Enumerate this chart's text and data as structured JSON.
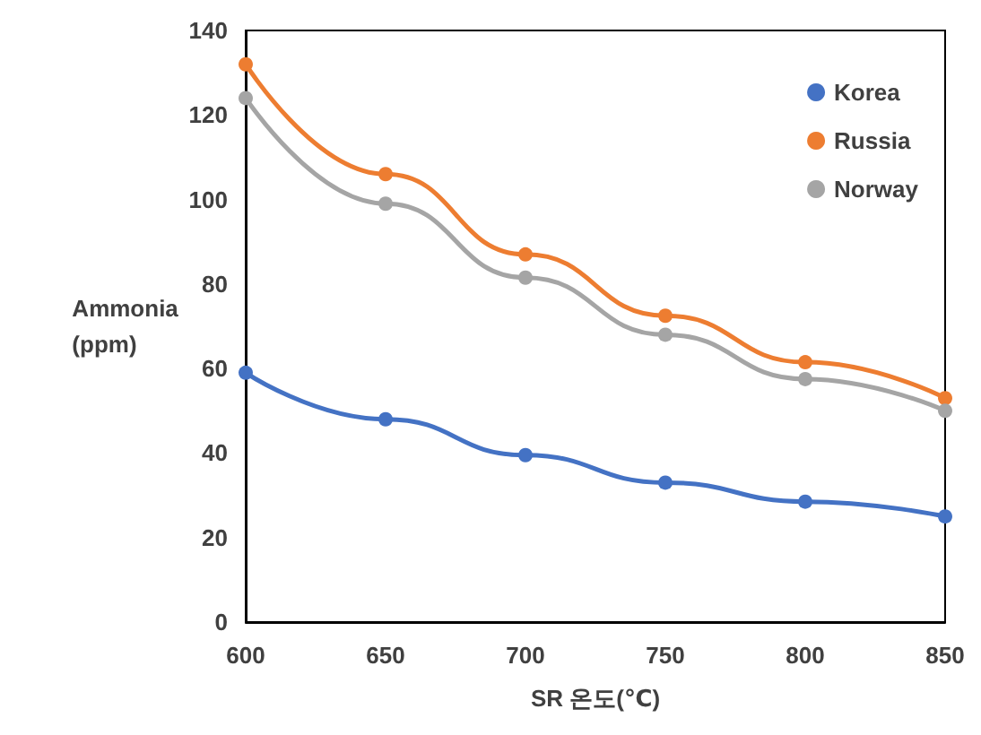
{
  "chart_data": {
    "type": "line",
    "xlabel": "SR 온도(℃)",
    "ylabel": "Ammonia\n(ppm)",
    "x": [
      600,
      650,
      700,
      750,
      800,
      850
    ],
    "series": [
      {
        "name": "Korea",
        "color": "#4472c4",
        "values": [
          59,
          48,
          39.5,
          33,
          28.5,
          25
        ]
      },
      {
        "name": "Russia",
        "color": "#ed7d31",
        "values": [
          132,
          106,
          87,
          72.5,
          61.5,
          53
        ]
      },
      {
        "name": "Norway",
        "color": "#a5a5a5",
        "values": [
          124,
          99,
          81.5,
          68,
          57.5,
          50
        ]
      }
    ],
    "xlim": [
      600,
      850
    ],
    "xticks": [
      600,
      650,
      700,
      750,
      800,
      850
    ],
    "ylim": [
      0,
      140
    ],
    "yticks": [
      0,
      20,
      40,
      60,
      80,
      100,
      120,
      140
    ],
    "grid": false,
    "legend": "top right",
    "marker": "circle",
    "line_style": "solid"
  }
}
